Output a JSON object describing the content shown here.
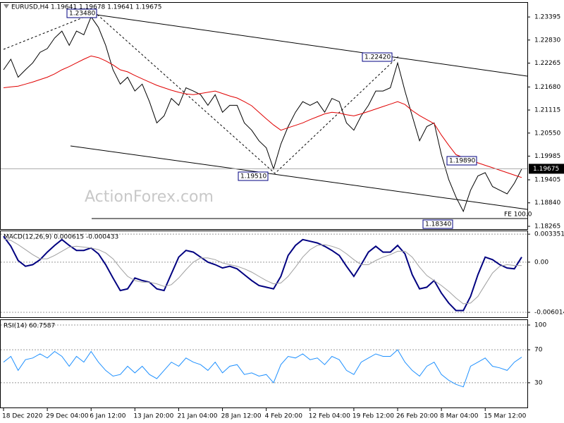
{
  "chart_data": [
    {
      "type": "line",
      "title": "EURUSD,H4  1.19641 1.19678 1.19641 1.19675",
      "categories": [
        "18 Dec 2020",
        null,
        null,
        null,
        null,
        null,
        "29 Dec 04:00",
        null,
        null,
        null,
        null,
        null,
        "6 Jan 12:00",
        null,
        null,
        null,
        null,
        null,
        "13 Jan 20:00",
        null,
        null,
        null,
        null,
        null,
        "21 Jan 04:00",
        null,
        null,
        null,
        null,
        null,
        "28 Jan 12:00",
        null,
        null,
        null,
        null,
        null,
        "4 Feb 20:00",
        null,
        null,
        null,
        null,
        null,
        "12 Feb 04:00",
        null,
        null,
        null,
        null,
        null,
        "19 Feb 12:00",
        null,
        null,
        null,
        null,
        null,
        "26 Feb 20:00",
        null,
        null,
        null,
        null,
        null,
        "8 Mar 04:00",
        null,
        null,
        null,
        null,
        null,
        "15 Mar 12:00",
        null,
        null,
        null,
        null,
        null
      ],
      "series": [
        {
          "color": "#000000",
          "values": [
            1.221,
            1.2236,
            1.2192,
            1.221,
            1.2227,
            1.2253,
            1.2262,
            1.2288,
            1.2305,
            1.227,
            1.2305,
            1.2296,
            1.234,
            1.2314,
            1.227,
            1.221,
            1.2175,
            1.2192,
            1.2158,
            1.2175,
            1.2132,
            1.208,
            1.2097,
            1.214,
            1.2123,
            1.2166,
            1.2158,
            1.2149,
            1.2123,
            1.2149,
            1.2106,
            1.2123,
            1.2123,
            1.208,
            1.2062,
            1.2036,
            1.2019,
            1.1967,
            1.2028,
            1.2071,
            1.2106,
            1.2132,
            1.2123,
            1.2132,
            1.2106,
            1.214,
            1.2132,
            1.208,
            1.2062,
            1.2097,
            1.2123,
            1.2158,
            1.2158,
            1.2166,
            1.2227,
            1.2158,
            1.2097,
            1.2036,
            1.2071,
            1.208,
            1.2002,
            1.1941,
            1.1898,
            1.1863,
            1.1915,
            1.195,
            1.1958,
            1.1924,
            1.1915,
            1.1906,
            1.1932,
            1.1967
          ]
        },
        {
          "color": "#e00000",
          "values": [
            1.2166,
            1.2168,
            1.217,
            1.2175,
            1.218,
            1.2186,
            1.2192,
            1.22,
            1.221,
            1.2218,
            1.2227,
            1.2236,
            1.2244,
            1.224,
            1.2232,
            1.2222,
            1.221,
            1.2205,
            1.2196,
            1.2188,
            1.218,
            1.2172,
            1.2166,
            1.216,
            1.2155,
            1.2151,
            1.2149,
            1.2152,
            1.2155,
            1.2158,
            1.2152,
            1.2146,
            1.2141,
            1.2132,
            1.2122,
            1.2106,
            1.209,
            1.2075,
            1.2062,
            1.2068,
            1.2074,
            1.208,
            1.2088,
            1.2095,
            1.2102,
            1.2106,
            1.2104,
            1.21,
            1.2097,
            1.2102,
            1.2108,
            1.2114,
            1.212,
            1.2126,
            1.2132,
            1.2125,
            1.211,
            1.2098,
            1.2088,
            1.2078,
            1.205,
            1.2025,
            1.2002,
            1.1995,
            1.1988,
            1.1982,
            1.1976,
            1.197,
            1.1964,
            1.1958,
            1.1952,
            1.1946
          ]
        }
      ],
      "ylim": [
        1.18196,
        1.23742
      ],
      "yticks": [
        1.23395,
        {
          "value": 1.2283,
          "label": "1.22830"
        },
        1.22265,
        {
          "value": 1.2168,
          "label": "1.21680"
        },
        1.21115,
        {
          "value": 1.2055,
          "label": "1.20550"
        },
        1.19985,
        1.19405,
        {
          "value": 1.1884,
          "label": "1.18840"
        },
        1.18265
      ],
      "grid": false,
      "last_price": 1.19675,
      "annotations": [
        "1.23480",
        "1.22420",
        "1.19510",
        "1.19890",
        "1.18340",
        "FE 100.0",
        "ActionForex.com"
      ]
    },
    {
      "type": "line",
      "title": "MACD(12,26,9) 0.000615 -0.000433",
      "series": [
        {
          "color": "#000080",
          "values": [
            0.0031,
            0.0019,
            0.0002,
            -0.0005,
            -0.0003,
            0.0003,
            0.0012,
            0.002,
            0.0027,
            0.002,
            0.0014,
            0.0014,
            0.0017,
            0.001,
            -0.0003,
            -0.0019,
            -0.0034,
            -0.0032,
            -0.0019,
            -0.0022,
            -0.0024,
            -0.0032,
            -0.0034,
            -0.0014,
            0.0006,
            0.0014,
            0.0012,
            0.0006,
            0,
            -0.0003,
            -0.0007,
            -0.0005,
            -0.0008,
            -0.0015,
            -0.0022,
            -0.0028,
            -0.003,
            -0.0032,
            -0.0017,
            0.0008,
            0.002,
            0.0027,
            0.0025,
            0.0023,
            0.0019,
            0.0014,
            0.0008,
            -0.0005,
            -0.0017,
            -0.0003,
            0.0012,
            0.0019,
            0.0012,
            0.0012,
            0.002,
            0.001,
            -0.0015,
            -0.0032,
            -0.003,
            -0.0022,
            -0.0037,
            -0.0049,
            -0.0058,
            -0.0058,
            -0.0041,
            -0.0015,
            0.0006,
            0.0003,
            -0.0003,
            -0.0007,
            -0.0008,
            0.0006
          ]
        },
        {
          "color": "#a0a0a0",
          "values": [
            0.0028,
            0.0026,
            0.0021,
            0.0015,
            0.0009,
            0.0004,
            0.0004,
            0.0008,
            0.0013,
            0.0018,
            0.0019,
            0.0018,
            0.0017,
            0.0015,
            0.0011,
            0.0004,
            -0.0007,
            -0.0017,
            -0.0022,
            -0.0024,
            -0.0024,
            -0.0026,
            -0.0029,
            -0.0027,
            -0.0019,
            -0.0009,
            0,
            0.0005,
            0.0005,
            0.0003,
            -0.0001,
            -0.0003,
            -0.0005,
            -0.0008,
            -0.0012,
            -0.0017,
            -0.0022,
            -0.0026,
            -0.0025,
            -0.0017,
            -0.0006,
            0.0006,
            0.0015,
            0.002,
            0.0021,
            0.0019,
            0.0016,
            0.001,
            0.0003,
            -0.0003,
            -0.0003,
            0.0002,
            0.0006,
            0.0009,
            0.0013,
            0.0013,
            0.0006,
            -0.0006,
            -0.0016,
            -0.0022,
            -0.0028,
            -0.0035,
            -0.0043,
            -0.005,
            -0.0049,
            -0.0041,
            -0.0027,
            -0.0013,
            -0.0005,
            -0.0003,
            -0.0004,
            -0.0004
          ]
        }
      ],
      "ylim": [
        -0.0066,
        0.0037
      ],
      "yticks": [
        0.003351,
        {
          "value": 0,
          "label": "0.00"
        },
        -0.006014
      ],
      "grid": true
    },
    {
      "type": "line",
      "title": "RSI(14) 60.7587",
      "series": [
        {
          "color": "#1e90ff",
          "values": [
            55,
            62,
            45,
            58,
            60,
            65,
            60,
            68,
            62,
            50,
            62,
            55,
            68,
            55,
            45,
            38,
            40,
            50,
            42,
            50,
            40,
            35,
            45,
            55,
            50,
            60,
            55,
            52,
            45,
            55,
            42,
            50,
            52,
            40,
            42,
            38,
            40,
            30,
            52,
            62,
            60,
            65,
            58,
            60,
            52,
            62,
            58,
            45,
            40,
            55,
            60,
            65,
            62,
            62,
            70,
            55,
            45,
            38,
            50,
            55,
            40,
            33,
            28,
            25,
            50,
            55,
            60,
            50,
            48,
            45,
            55,
            61
          ]
        }
      ],
      "ylim": [
        0,
        106
      ],
      "yticks": [
        30,
        70,
        100
      ],
      "grid": true
    }
  ]
}
